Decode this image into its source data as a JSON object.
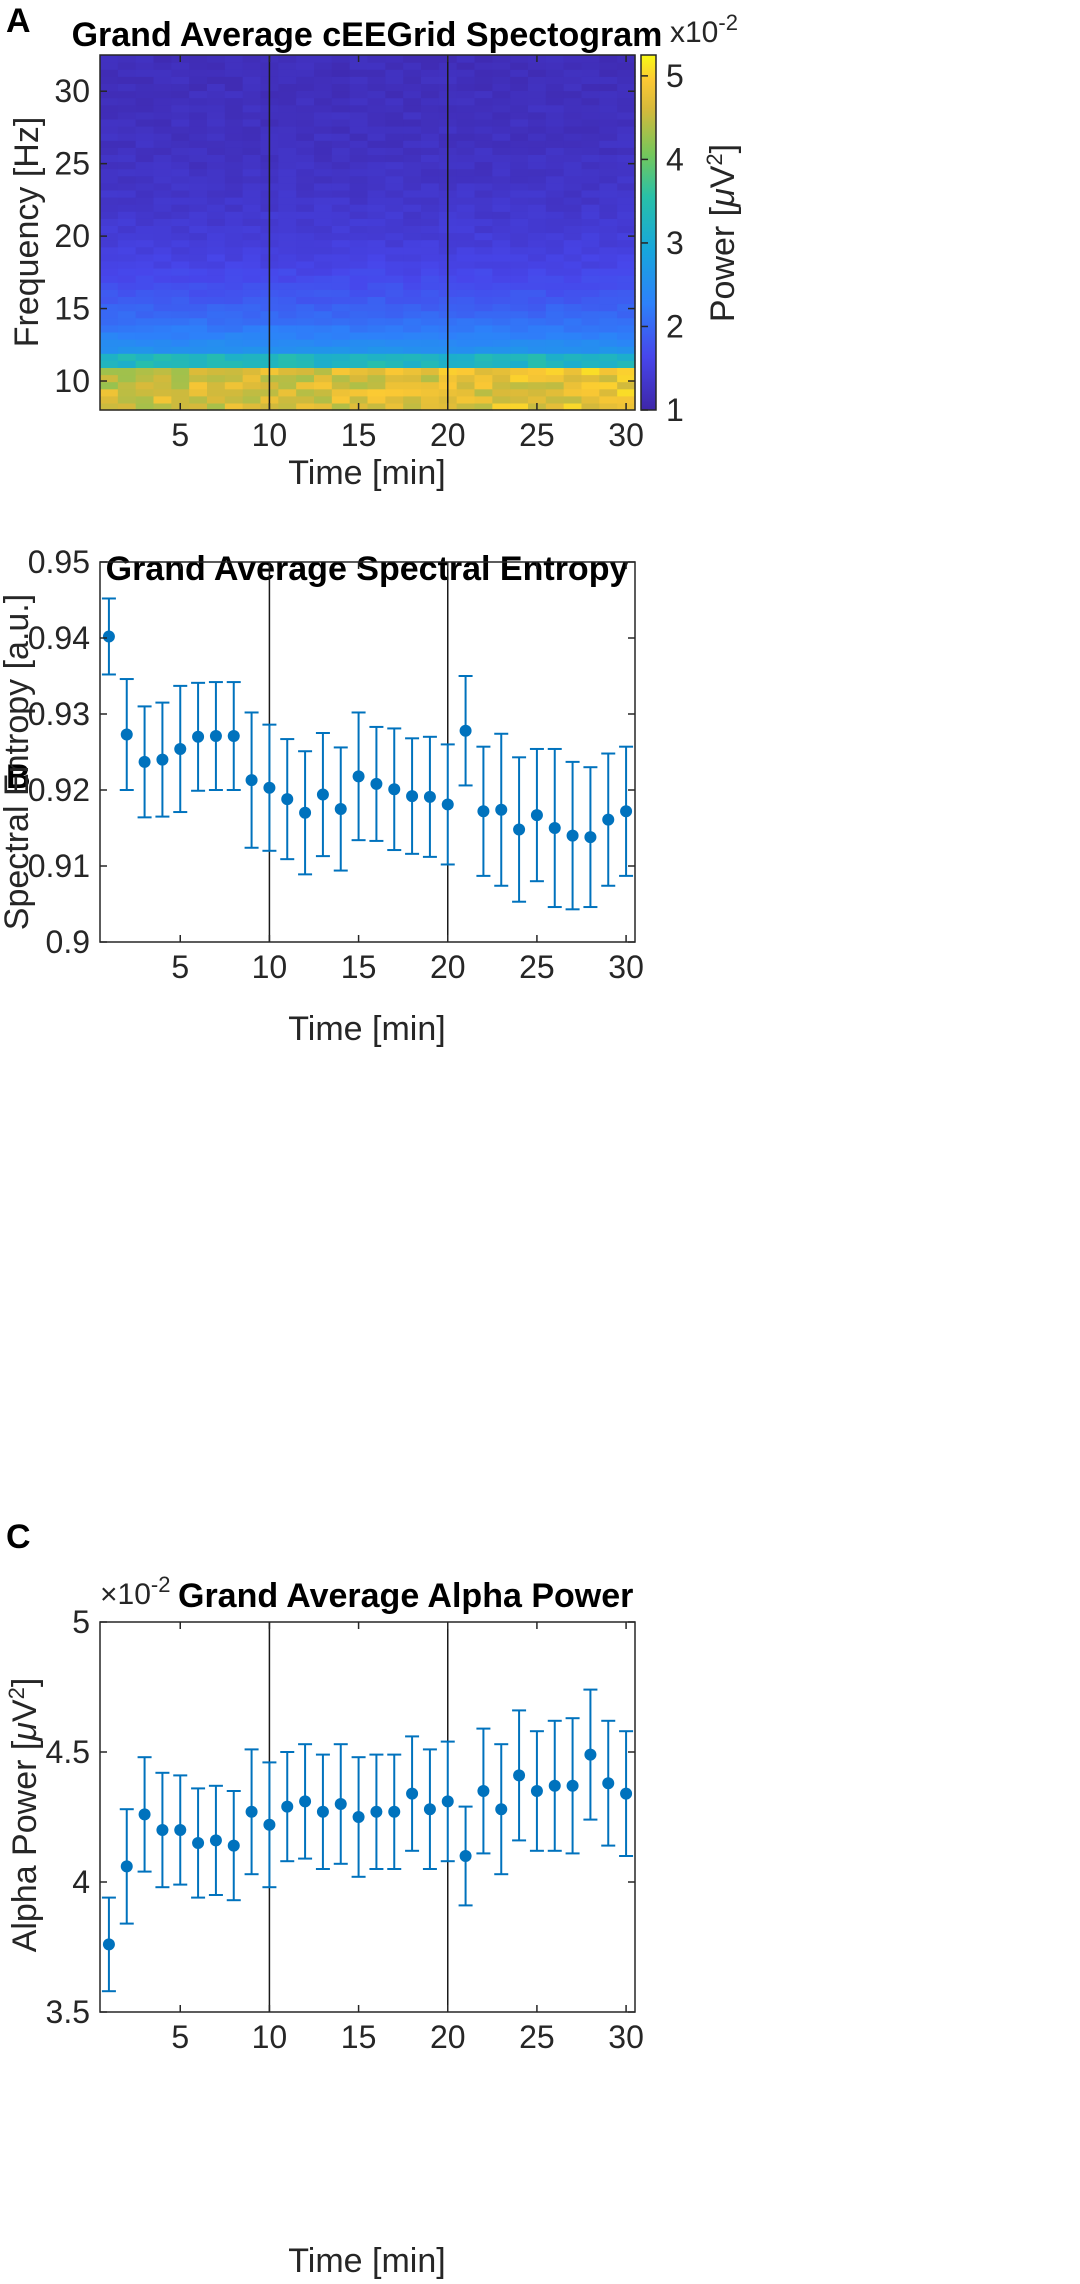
{
  "chart_data": [
    {
      "panel": "A",
      "type": "heatmap",
      "title": "Grand Average cEEGrid Spectogram",
      "xlabel": "Time [min]",
      "ylabel": "Frequency [Hz]",
      "xlim": [
        0.5,
        30.5
      ],
      "ylim": [
        8,
        32.5
      ],
      "xticks": [
        5,
        10,
        15,
        20,
        25,
        30
      ],
      "yticks": [
        10,
        15,
        20,
        25,
        30
      ],
      "vlines": [
        10,
        20
      ],
      "colorbar": {
        "label_main": "Power [",
        "label_mu": "μ",
        "label_v": "V",
        "label_sup": "2",
        "label_close": "]",
        "multiplier_base": "x10",
        "multiplier_exp": "-2",
        "range": [
          1,
          5.25
        ],
        "ticks": [
          1,
          2,
          3,
          4,
          5
        ],
        "colormap": "parula"
      },
      "description_freq_bins_hz": [
        8,
        32
      ]
    },
    {
      "panel": "B",
      "type": "scatter",
      "title": "Grand Average Spectral Entropy",
      "xlabel": "Time [min]",
      "ylabel": "Spectral Entropy [a.u.]",
      "xlim": [
        0.5,
        30.5
      ],
      "ylim": [
        0.9,
        0.95
      ],
      "xticks": [
        5,
        10,
        15,
        20,
        25,
        30
      ],
      "yticks": [
        0.9,
        0.91,
        0.92,
        0.93,
        0.94,
        0.95
      ],
      "ytick_labels": [
        "0.9",
        "0.91",
        "0.92",
        "0.93",
        "0.94",
        "0.95"
      ],
      "vlines": [
        10,
        20
      ],
      "color": "#0072BD",
      "x": [
        1,
        2,
        3,
        4,
        5,
        6,
        7,
        8,
        9,
        10,
        11,
        12,
        13,
        14,
        15,
        16,
        17,
        18,
        19,
        20,
        21,
        22,
        23,
        24,
        25,
        26,
        27,
        28,
        29,
        30
      ],
      "y": [
        0.9402,
        0.9273,
        0.9237,
        0.924,
        0.9254,
        0.927,
        0.9271,
        0.9271,
        0.9213,
        0.9203,
        0.9188,
        0.917,
        0.9194,
        0.9175,
        0.9218,
        0.9208,
        0.9201,
        0.9192,
        0.9191,
        0.9181,
        0.9278,
        0.9172,
        0.9174,
        0.9148,
        0.9167,
        0.915,
        0.914,
        0.9138,
        0.9161,
        0.9172
      ],
      "err": [
        0.005,
        0.0073,
        0.0073,
        0.0075,
        0.0083,
        0.0071,
        0.0071,
        0.0071,
        0.0089,
        0.0083,
        0.0079,
        0.0081,
        0.0081,
        0.0081,
        0.0084,
        0.0075,
        0.008,
        0.0076,
        0.0079,
        0.0079,
        0.0072,
        0.0085,
        0.01,
        0.0095,
        0.0087,
        0.0104,
        0.0097,
        0.0092,
        0.0087,
        0.0085
      ]
    },
    {
      "panel": "C",
      "type": "scatter",
      "title": "Grand Average Alpha Power",
      "multiplier_base": "×10",
      "multiplier_exp": "-2",
      "xlabel": "Time [min]",
      "ylabel_main": "Alpha Power [",
      "ylabel_mu": "μ",
      "ylabel_v": "V",
      "ylabel_sup": "2",
      "ylabel_close": "]",
      "xlim": [
        0.5,
        30.5
      ],
      "ylim": [
        3.5,
        5.0
      ],
      "xticks": [
        5,
        10,
        15,
        20,
        25,
        30
      ],
      "yticks": [
        3.5,
        4,
        4.5,
        5
      ],
      "ytick_labels": [
        "3.5",
        "4",
        "4.5",
        "5"
      ],
      "vlines": [
        10,
        20
      ],
      "color": "#0072BD",
      "x": [
        1,
        2,
        3,
        4,
        5,
        6,
        7,
        8,
        9,
        10,
        11,
        12,
        13,
        14,
        15,
        16,
        17,
        18,
        19,
        20,
        21,
        22,
        23,
        24,
        25,
        26,
        27,
        28,
        29,
        30
      ],
      "y": [
        3.76,
        4.06,
        4.26,
        4.2,
        4.2,
        4.15,
        4.16,
        4.14,
        4.27,
        4.22,
        4.29,
        4.31,
        4.27,
        4.3,
        4.25,
        4.27,
        4.27,
        4.34,
        4.28,
        4.31,
        4.1,
        4.35,
        4.28,
        4.41,
        4.35,
        4.37,
        4.37,
        4.49,
        4.38,
        4.34
      ],
      "err": [
        0.18,
        0.22,
        0.22,
        0.22,
        0.21,
        0.21,
        0.21,
        0.21,
        0.24,
        0.24,
        0.21,
        0.22,
        0.22,
        0.23,
        0.23,
        0.22,
        0.22,
        0.22,
        0.23,
        0.23,
        0.19,
        0.24,
        0.25,
        0.25,
        0.23,
        0.25,
        0.26,
        0.25,
        0.24,
        0.24
      ]
    }
  ],
  "labels": {
    "panel_a": "A",
    "panel_b": "B",
    "panel_c": "C"
  }
}
